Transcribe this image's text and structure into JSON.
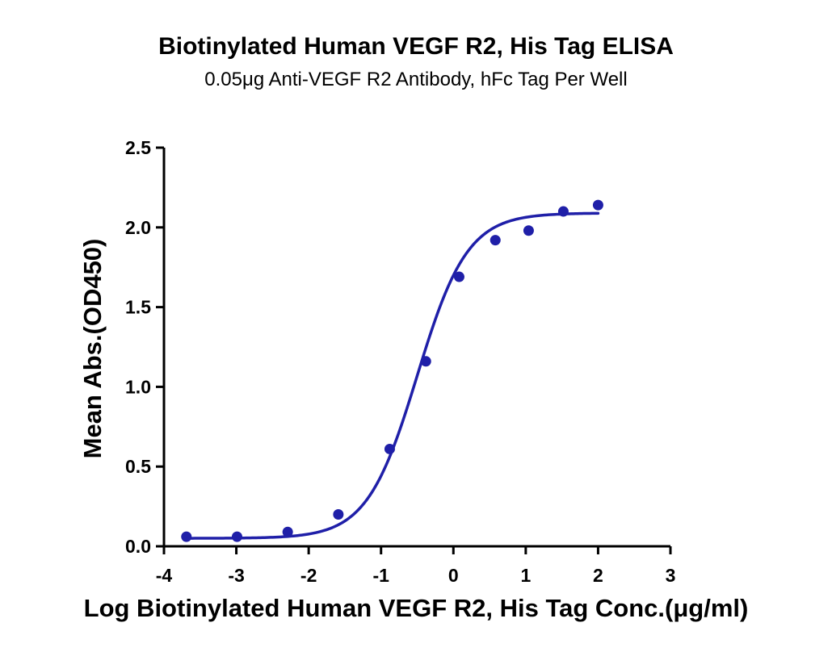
{
  "chart_data": {
    "type": "scatter",
    "title": "Biotinylated Human VEGF R2, His Tag ELISA",
    "subtitle": "0.05μg Anti-VEGF R2 Antibody, hFc Tag Per Well",
    "xlabel": "Log Biotinylated Human VEGF R2, His Tag Conc.(μg/ml)",
    "ylabel": "Mean Abs.(OD450)",
    "xlim": [
      -4,
      3
    ],
    "ylim": [
      0,
      2.5
    ],
    "xticks": [
      "-4",
      "-3",
      "-2",
      "-1",
      "0",
      "1",
      "2",
      "3"
    ],
    "yticks": [
      "0.0",
      "0.5",
      "1.0",
      "1.5",
      "2.0",
      "2.5"
    ],
    "grid": false,
    "legend": "none",
    "colors": {
      "series": "#1f1fa8",
      "axis": "#000000"
    },
    "series": [
      {
        "points": [
          {
            "x": -3.69,
            "y": 0.06
          },
          {
            "x": -2.99,
            "y": 0.06
          },
          {
            "x": -2.29,
            "y": 0.09
          },
          {
            "x": -1.59,
            "y": 0.2
          },
          {
            "x": -0.88,
            "y": 0.61
          },
          {
            "x": -0.38,
            "y": 1.16
          },
          {
            "x": 0.08,
            "y": 1.69
          },
          {
            "x": 0.58,
            "y": 1.92
          },
          {
            "x": 1.04,
            "y": 1.98
          },
          {
            "x": 1.52,
            "y": 2.1
          },
          {
            "x": 2.0,
            "y": 2.14
          }
        ],
        "fit": {
          "model": "four-parameter logistic",
          "bottom": 0.05,
          "top": 2.09,
          "logEC50": -0.5,
          "hill": 1.25,
          "x_range": [
            -3.69,
            2.0
          ]
        }
      }
    ]
  }
}
